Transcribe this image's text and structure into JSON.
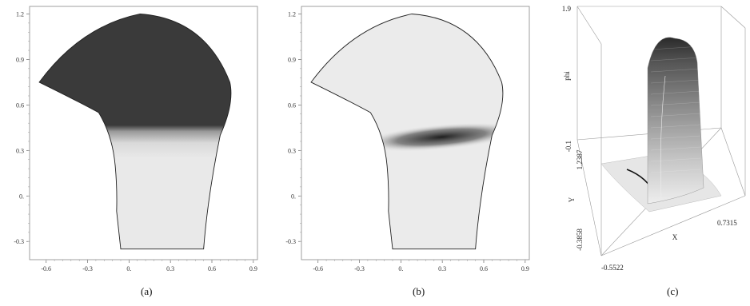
{
  "chart_data": [
    {
      "type": "heatmap",
      "panel": "a",
      "caption": "(a)",
      "x_ticks": [
        "-0.6",
        "-0.3",
        "0.",
        "0.3",
        "0.6",
        "0.9"
      ],
      "y_ticks": [
        "-0.3",
        "0.",
        "0.3",
        "0.6",
        "0.9",
        "1.2"
      ],
      "xlim": [
        -0.72,
        0.93
      ],
      "ylim": [
        -0.42,
        1.25
      ],
      "domain_outline": [
        [
          -0.06,
          -0.35
        ],
        [
          0.54,
          -0.35
        ],
        [
          0.57,
          0.0
        ],
        [
          0.66,
          0.4
        ],
        [
          0.73,
          0.75
        ],
        [
          0.08,
          1.2
        ],
        [
          -0.65,
          0.75
        ],
        [
          -0.22,
          0.55
        ],
        [
          -0.1,
          0.2
        ],
        [
          -0.09,
          -0.1
        ]
      ],
      "field_description": "phase field: dark region above y≈0.45, light region below, diffuse interface",
      "interface_y": 0.45,
      "dark_value": 1.0,
      "light_value": 0.0,
      "colors": {
        "dark": "#3a3a3a",
        "light": "#e9e9e9"
      }
    },
    {
      "type": "heatmap",
      "panel": "b",
      "caption": "(b)",
      "x_ticks": [
        "-0.6",
        "-0.3",
        "0.",
        "0.3",
        "0.6",
        "0.9"
      ],
      "y_ticks": [
        "-0.3",
        "0.",
        "0.3",
        "0.6",
        "0.9",
        "1.2"
      ],
      "xlim": [
        -0.72,
        0.93
      ],
      "ylim": [
        -0.42,
        1.25
      ],
      "domain_outline": [
        [
          -0.06,
          -0.35
        ],
        [
          0.54,
          -0.35
        ],
        [
          0.57,
          0.0
        ],
        [
          0.66,
          0.4
        ],
        [
          0.73,
          0.75
        ],
        [
          0.08,
          1.2
        ],
        [
          -0.65,
          0.75
        ],
        [
          -0.22,
          0.55
        ],
        [
          -0.1,
          0.2
        ],
        [
          -0.09,
          -0.1
        ]
      ],
      "field_description": "narrow dark band along the interface near y≈0.4",
      "band_y": 0.42,
      "colors": {
        "band": "#1e1e1e",
        "light": "#ebebeb"
      }
    },
    {
      "type": "surface3d",
      "panel": "c",
      "caption": "(c)",
      "zlabel": "phi",
      "xlabel": "X",
      "ylabel": "Y",
      "z_ticks": [
        "1.9",
        "-0.1"
      ],
      "x_ticks": [
        "-0.5522",
        "0.7315"
      ],
      "y_ticks": [
        "1.2387",
        "-0.3858"
      ],
      "zlim": [
        -0.1,
        1.9
      ],
      "xlim": [
        -0.5522,
        0.7315
      ],
      "ylim": [
        -0.3858,
        1.2387
      ]
    }
  ]
}
